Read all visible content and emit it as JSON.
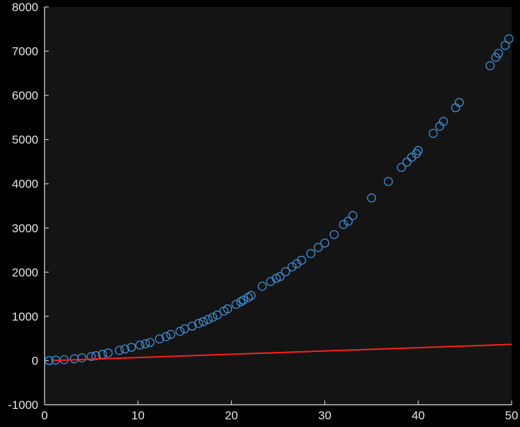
{
  "chart_data": {
    "type": "scatter",
    "title": "",
    "xlabel": "",
    "ylabel": "",
    "xlim": [
      0,
      50
    ],
    "ylim": [
      -1000,
      8000
    ],
    "x_ticks": [
      "0",
      "10",
      "20",
      "30",
      "40",
      "50"
    ],
    "y_ticks": [
      "-1000",
      "0",
      "1000",
      "2000",
      "3000",
      "4000",
      "5000",
      "6000",
      "7000",
      "8000"
    ],
    "grid": false,
    "legend": "none",
    "colors": {
      "background": "#000000",
      "plot_area": "#141414",
      "axis": "#e6e6e6",
      "scatter": "#3f8fd8",
      "line": "#ff2020"
    },
    "series": [
      {
        "kind": "scatter",
        "points": [
          [
            0.5,
            0
          ],
          [
            1.2,
            10
          ],
          [
            2.1,
            20
          ],
          [
            3.2,
            40
          ],
          [
            4.0,
            60
          ],
          [
            5.0,
            90
          ],
          [
            5.5,
            110
          ],
          [
            6.2,
            140
          ],
          [
            6.8,
            170
          ],
          [
            8.0,
            230
          ],
          [
            8.6,
            260
          ],
          [
            9.3,
            300
          ],
          [
            10.2,
            350
          ],
          [
            10.8,
            380
          ],
          [
            11.3,
            410
          ],
          [
            12.3,
            490
          ],
          [
            13.0,
            540
          ],
          [
            13.5,
            590
          ],
          [
            14.5,
            660
          ],
          [
            15.0,
            720
          ],
          [
            15.8,
            780
          ],
          [
            16.5,
            840
          ],
          [
            17.0,
            880
          ],
          [
            17.5,
            930
          ],
          [
            18.0,
            980
          ],
          [
            18.5,
            1030
          ],
          [
            19.2,
            1120
          ],
          [
            19.6,
            1170
          ],
          [
            20.5,
            1270
          ],
          [
            21.0,
            1330
          ],
          [
            21.3,
            1370
          ],
          [
            21.8,
            1430
          ],
          [
            22.1,
            1470
          ],
          [
            23.3,
            1680
          ],
          [
            24.2,
            1790
          ],
          [
            24.8,
            1860
          ],
          [
            25.2,
            1900
          ],
          [
            25.8,
            2010
          ],
          [
            26.5,
            2120
          ],
          [
            27.0,
            2190
          ],
          [
            27.5,
            2270
          ],
          [
            28.5,
            2420
          ],
          [
            29.3,
            2560
          ],
          [
            30.0,
            2660
          ],
          [
            31.0,
            2850
          ],
          [
            32.0,
            3080
          ],
          [
            32.5,
            3150
          ],
          [
            33.0,
            3280
          ],
          [
            35.0,
            3680
          ],
          [
            36.8,
            4050
          ],
          [
            38.2,
            4370
          ],
          [
            38.8,
            4490
          ],
          [
            39.3,
            4600
          ],
          [
            39.8,
            4680
          ],
          [
            40.0,
            4750
          ],
          [
            41.6,
            5140
          ],
          [
            42.3,
            5300
          ],
          [
            42.7,
            5410
          ],
          [
            44.0,
            5720
          ],
          [
            44.4,
            5840
          ],
          [
            47.7,
            6670
          ],
          [
            48.3,
            6860
          ],
          [
            48.6,
            6950
          ],
          [
            49.3,
            7130
          ],
          [
            49.7,
            7280
          ]
        ]
      },
      {
        "kind": "line",
        "points": [
          [
            1.0,
            0
          ],
          [
            50.0,
            365
          ]
        ]
      }
    ]
  }
}
